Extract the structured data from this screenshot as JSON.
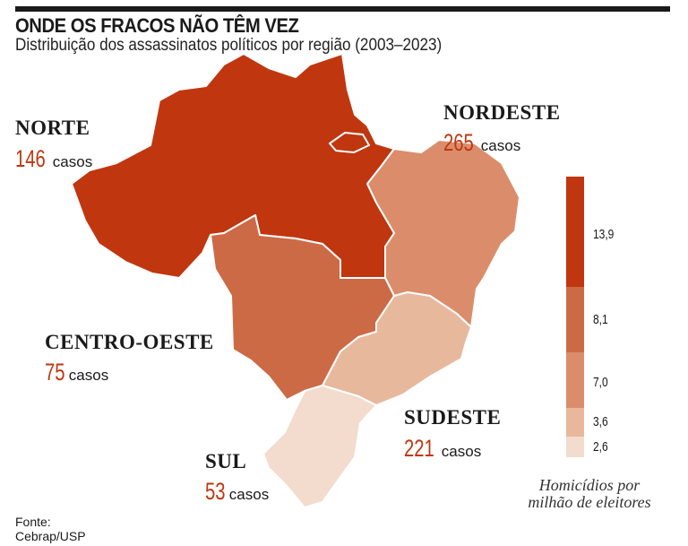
{
  "header": {
    "title": "ONDE OS FRACOS NÃO TÊM VEZ",
    "subtitle": "Distribuição dos assassinatos políticos por região (2003–2023)"
  },
  "regions": [
    {
      "name": "NORTE",
      "count": "146",
      "unit": "casos",
      "rate_class": "13,9",
      "color": "#c0360f"
    },
    {
      "name": "NORDESTE",
      "count": "265",
      "unit": "casos",
      "rate_class": "7,0",
      "color": "#db8d6b"
    },
    {
      "name": "CENTRO-OESTE",
      "count": "75",
      "unit": "casos",
      "rate_class": "8,1",
      "color": "#cd6a46"
    },
    {
      "name": "SUDESTE",
      "count": "221",
      "unit": "casos",
      "rate_class": "3,6",
      "color": "#e8b89d"
    },
    {
      "name": "SUL",
      "count": "53",
      "unit": "casos",
      "rate_class": "2,6",
      "color": "#f3dccd"
    }
  ],
  "legend": {
    "title": "Homicídios por milhão de eleitores",
    "steps": [
      {
        "value": "13,9",
        "color": "#c0360f"
      },
      {
        "value": "8,1",
        "color": "#cd6a46"
      },
      {
        "value": "7,0",
        "color": "#db8d6b"
      },
      {
        "value": "3,6",
        "color": "#e8b89d"
      },
      {
        "value": "2,6",
        "color": "#f3dccd"
      }
    ]
  },
  "source": {
    "label": "Fonte:",
    "value": "Cebrap/USP"
  }
}
